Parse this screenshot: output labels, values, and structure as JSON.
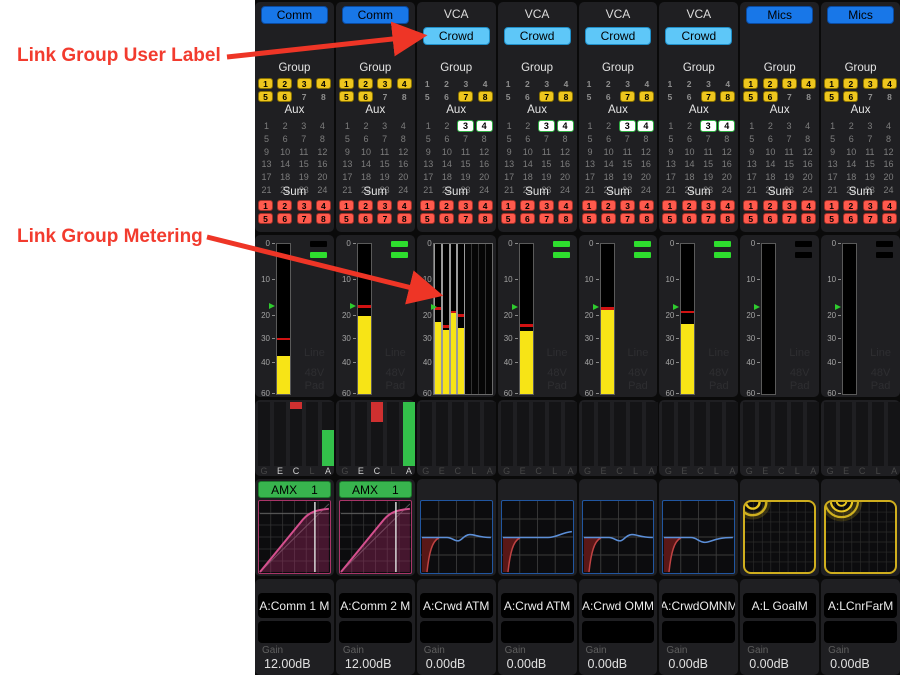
{
  "annotations": {
    "user_label": "Link Group User Label",
    "metering_label": "Link Group Metering"
  },
  "colors": {
    "annotation_red": "#f23b2e",
    "blue_button": "#1877e8",
    "cyan_button": "#5ec7f8",
    "group_badge_yellow": "#eec61e",
    "sum_badge_red": "#ff5a4d",
    "aux_selected_border_green": "#2fae43",
    "meter_yellow": "#f7e416",
    "meter_peak_red": "#d01212",
    "led_green": "#2ede2e",
    "amx_green": "#38b44e",
    "comp_curve_magenta": "#d4508e",
    "eq_line_blue": "#5c8fd8",
    "eq_hpf_red": "#c04343",
    "arcs_yellow": "#e9c722"
  },
  "labels": {
    "group": "Group",
    "aux": "Aux",
    "sum": "Sum",
    "gain": "Gain",
    "io_lines": [
      "Line",
      "48V",
      "Pad"
    ],
    "dyn_letters": [
      "G",
      "E",
      "C",
      "L",
      "A"
    ],
    "meter_scale": [
      "0",
      "10",
      "20",
      "30",
      "40",
      "60"
    ],
    "group_numbers": [
      "1",
      "2",
      "3",
      "4",
      "5",
      "6",
      "7",
      "8"
    ],
    "aux_numbers": [
      "1",
      "2",
      "3",
      "4",
      "5",
      "6",
      "7",
      "8",
      "9",
      "10",
      "11",
      "12",
      "13",
      "14",
      "15",
      "16",
      "17",
      "18",
      "19",
      "20",
      "21",
      "22",
      "23",
      "24"
    ],
    "sum_numbers": [
      "1",
      "2",
      "3",
      "4",
      "5",
      "6",
      "7",
      "8"
    ]
  },
  "strips": [
    {
      "top_label": "Comm",
      "button_style": "blue",
      "sub_button": null,
      "group_on": [
        1,
        2,
        3,
        4,
        5,
        6
      ],
      "aux_boxed": [],
      "sum_on": [
        1,
        2,
        3,
        4,
        5,
        6,
        7,
        8
      ],
      "meter": {
        "wide": false,
        "level": 37,
        "peak": 29.5,
        "marker": 17.5
      },
      "leds": [
        "off",
        "on"
      ],
      "io_text": true,
      "dyn_bright": [
        "E",
        "C",
        "A"
      ],
      "dyn": {
        "red": 7,
        "green": 36
      },
      "amx": {
        "label": "AMX",
        "num": "1"
      },
      "graph": "comp",
      "name": "A:Comm 1 M",
      "gain": "12.00dB"
    },
    {
      "top_label": "Comm",
      "button_style": "blue",
      "sub_button": null,
      "group_on": [
        1,
        2,
        3,
        4,
        5,
        6
      ],
      "aux_boxed": [],
      "sum_on": [
        1,
        2,
        3,
        4,
        5,
        6,
        7,
        8
      ],
      "meter": {
        "wide": false,
        "level": 20,
        "peak": 17,
        "marker": 17.5
      },
      "leds": [
        "on",
        "on"
      ],
      "io_text": true,
      "dyn_bright": [
        "E",
        "C",
        "A"
      ],
      "dyn": {
        "red": 20,
        "green": 64
      },
      "amx": {
        "label": "AMX",
        "num": "1"
      },
      "graph": "comp",
      "name": "A:Comm 2 M",
      "gain": "12.00dB"
    },
    {
      "top_label": "VCA",
      "button_style": "none",
      "sub_button": "Crowd",
      "group_on": [
        7,
        8
      ],
      "aux_boxed": [
        3,
        4
      ],
      "sum_on": [
        1,
        2,
        3,
        4,
        5,
        6,
        7,
        8
      ],
      "meter": {
        "wide": true,
        "marker": 18,
        "bars": [
          {
            "level": 22.5,
            "peak": 17.5
          },
          {
            "level": 26,
            "peak": 24
          },
          {
            "level": 19,
            "peak": 18.5
          },
          {
            "level": 25,
            "peak": 19.5
          },
          null,
          null,
          null,
          null
        ]
      },
      "leds": null,
      "io_text": false,
      "dyn_bright": [],
      "dyn": {
        "red": 0,
        "green": 0
      },
      "amx": null,
      "graph": "eq_a",
      "name": "A:Crwd ATM",
      "gain": "0.00dB"
    },
    {
      "top_label": "VCA",
      "button_style": "none",
      "sub_button": "Crowd",
      "group_on": [
        7,
        8
      ],
      "aux_boxed": [
        3,
        4
      ],
      "sum_on": [
        1,
        2,
        3,
        4,
        5,
        6,
        7,
        8
      ],
      "meter": {
        "wide": false,
        "level": 26.5,
        "peak": 23.5,
        "marker": 18
      },
      "leds": [
        "on",
        "on"
      ],
      "io_text": true,
      "dyn_bright": [],
      "dyn": {
        "red": 0,
        "green": 0
      },
      "amx": null,
      "graph": "eq_b",
      "name": "A:Crwd ATM",
      "gain": "0.00dB"
    },
    {
      "top_label": "VCA",
      "button_style": "none",
      "sub_button": "Crowd",
      "group_on": [
        7,
        8
      ],
      "aux_boxed": [
        3,
        4
      ],
      "sum_on": [
        1,
        2,
        3,
        4,
        5,
        6,
        7,
        8
      ],
      "meter": {
        "wide": false,
        "level": 18.3,
        "peak": 17.6,
        "marker": 18
      },
      "leds": [
        "on",
        "on"
      ],
      "io_text": true,
      "dyn_bright": [],
      "dyn": {
        "red": 0,
        "green": 0
      },
      "amx": null,
      "graph": "eq_a",
      "name": "A:Crwd OMM",
      "gain": "0.00dB"
    },
    {
      "top_label": "VCA",
      "button_style": "none",
      "sub_button": "Crowd",
      "group_on": [
        7,
        8
      ],
      "aux_boxed": [
        3,
        4
      ],
      "sum_on": [
        1,
        2,
        3,
        4,
        5,
        6,
        7,
        8
      ],
      "meter": {
        "wide": false,
        "level": 23.5,
        "peak": 18.5,
        "marker": 18
      },
      "leds": [
        "on",
        "on"
      ],
      "io_text": true,
      "dyn_bright": [],
      "dyn": {
        "red": 0,
        "green": 0
      },
      "amx": null,
      "graph": "eq_c",
      "name": "A:CrwdOMNM",
      "gain": "0.00dB"
    },
    {
      "top_label": "Mics",
      "button_style": "blue",
      "sub_button": null,
      "group_on": [
        1,
        2,
        3,
        4,
        5,
        6
      ],
      "aux_boxed": [],
      "sum_on": [
        1,
        2,
        3,
        4,
        5,
        6,
        7,
        8
      ],
      "meter": {
        "wide": false,
        "level": null,
        "peak": null,
        "marker": 18
      },
      "leds": [
        "off",
        "off"
      ],
      "io_text": true,
      "dyn_bright": [],
      "dyn": {
        "red": 0,
        "green": 0
      },
      "amx": null,
      "graph": "arcs_a",
      "name": "A:L GoalM",
      "gain": "0.00dB"
    },
    {
      "top_label": "Mics",
      "button_style": "blue",
      "sub_button": null,
      "group_on": [
        1,
        2,
        3,
        4,
        5,
        6
      ],
      "aux_boxed": [],
      "sum_on": [
        1,
        2,
        3,
        4,
        5,
        6,
        7,
        8
      ],
      "meter": {
        "wide": false,
        "level": null,
        "peak": null,
        "marker": 18
      },
      "leds": [
        "off",
        "off"
      ],
      "io_text": true,
      "dyn_bright": [],
      "dyn": {
        "red": 0,
        "green": 0
      },
      "amx": null,
      "graph": "arcs_b",
      "name": "A:LCnrFarM",
      "gain": "0.00dB"
    }
  ]
}
